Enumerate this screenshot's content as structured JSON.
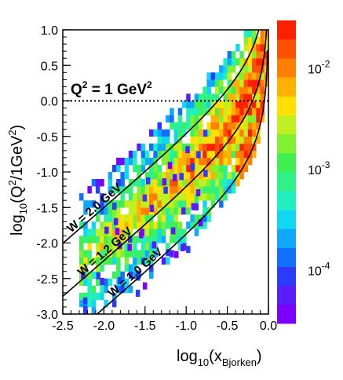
{
  "chart_data": {
    "type": "heatmap",
    "title": "",
    "xlabel": {
      "main": "log",
      "sub1": "10",
      "mid": "(x",
      "sub2": "Bjorken",
      "end": ")"
    },
    "ylabel": {
      "main": "log",
      "sub1": "10",
      "mid": "(Q",
      "sup": "2",
      "mid2": "/1GeV",
      "sup2": "2",
      "end": ")"
    },
    "xlim": [
      -2.5,
      0.0
    ],
    "ylim": [
      -3.0,
      1.0
    ],
    "x_ticks": [
      "-2.5",
      "-2.0",
      "-1.5",
      "-1.0",
      "-0.5",
      "0.0"
    ],
    "y_ticks": [
      "-3.0",
      "-2.5",
      "-2.0",
      "-1.5",
      "-1.0",
      "-0.5",
      "0.0",
      "0.5",
      "1.0"
    ],
    "colorbar": {
      "scale": "log",
      "range": [
        3e-05,
        0.03
      ],
      "ticks": [
        {
          "value": 0.01,
          "base": "10",
          "exp": "-2"
        },
        {
          "value": 0.001,
          "base": "10",
          "exp": "-3"
        },
        {
          "value": 0.0001,
          "base": "10",
          "exp": "-4"
        }
      ],
      "colors": [
        "#7b00ff",
        "#5a1cff",
        "#2a3cff",
        "#1070ff",
        "#10a8ff",
        "#10d8f0",
        "#20f0c0",
        "#30f088",
        "#40f050",
        "#80f030",
        "#c0f020",
        "#ffe000",
        "#ffb000",
        "#ff8000",
        "#ff5000",
        "#ff2000"
      ]
    },
    "annotations": {
      "q2_line": {
        "y": 0.0,
        "label": "Q",
        "sup": "2",
        "rest": " = 1 GeV",
        "sup2": "2"
      },
      "w_curves": [
        {
          "label": "W = 2.0 GeV",
          "W": 2.0
        },
        {
          "label": "W = 1.2 GeV",
          "W": 1.2
        },
        {
          "label": "W = 1.0 GeV",
          "W": 1.0
        }
      ]
    },
    "band": {
      "description_points_upper": [
        [
          -1.9,
          -2.2
        ],
        [
          -1.3,
          -1.15
        ],
        [
          -0.8,
          -0.45
        ],
        [
          -0.45,
          0.05
        ],
        [
          -0.2,
          0.5
        ],
        [
          -0.05,
          1.0
        ]
      ],
      "bin_size": [
        0.05,
        0.1
      ]
    }
  }
}
